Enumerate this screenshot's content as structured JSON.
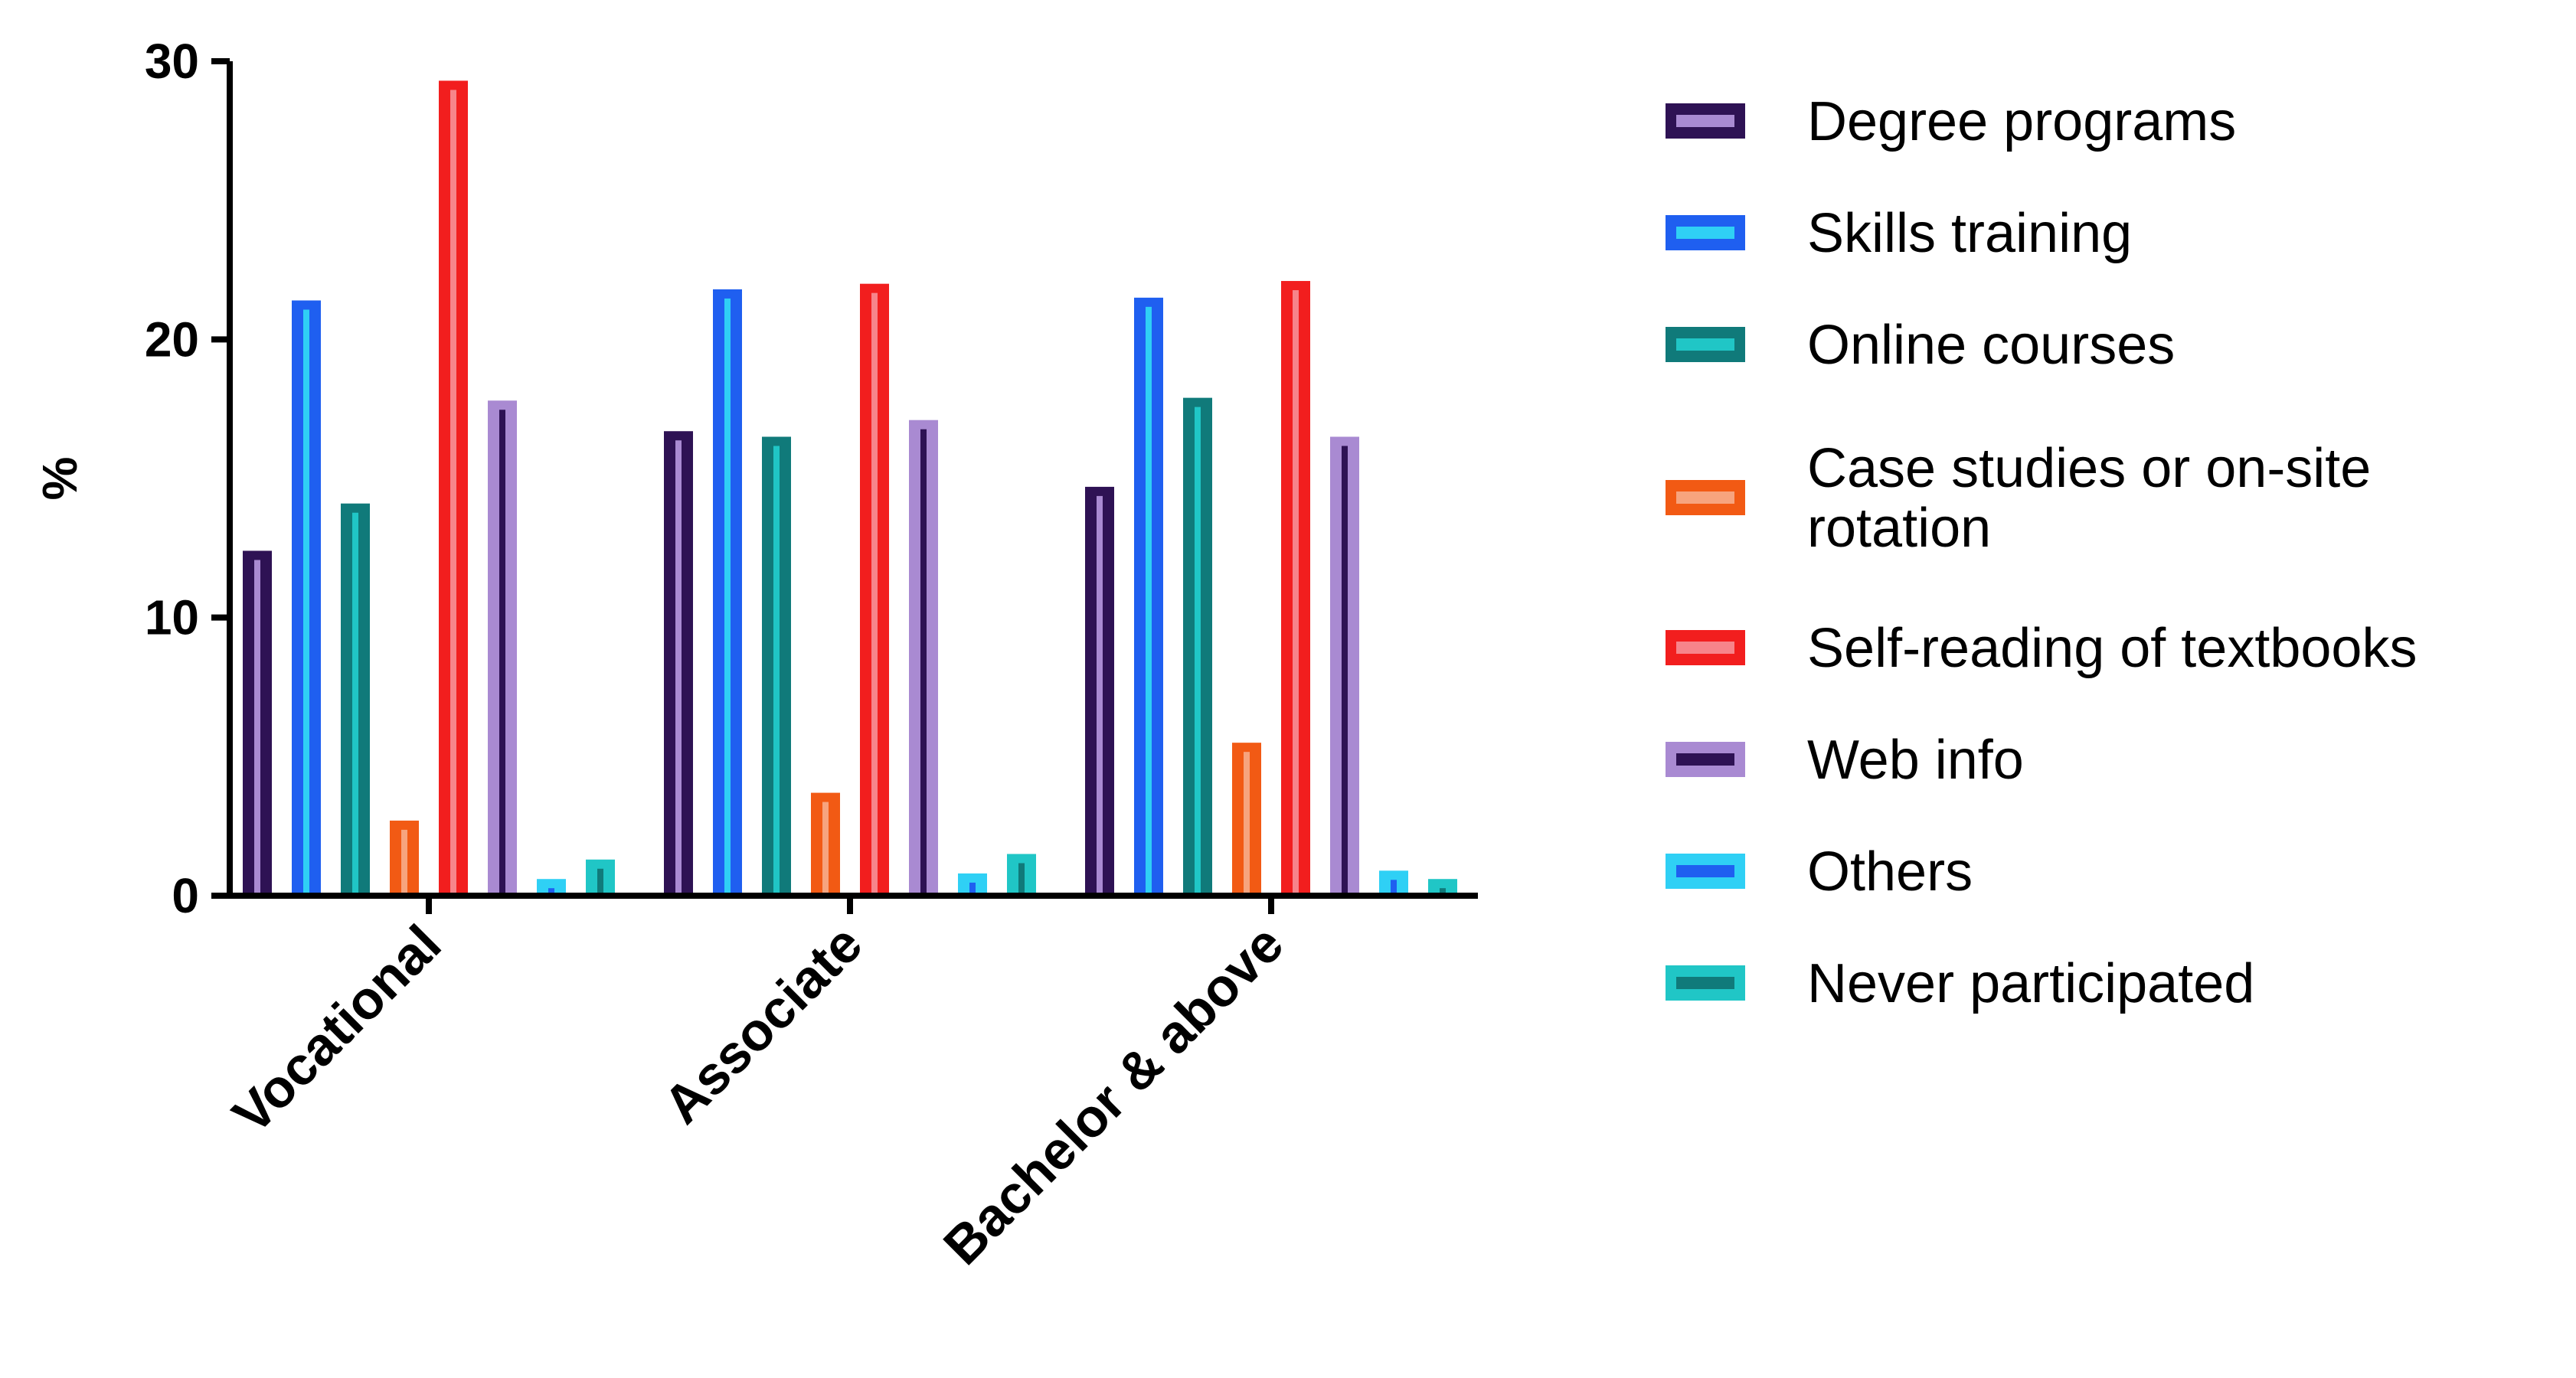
{
  "chart_data": {
    "type": "bar",
    "title": "",
    "xlabel": "",
    "ylabel": "%",
    "ylim": [
      0,
      30
    ],
    "yticks": [
      0,
      10,
      20,
      30
    ],
    "grid": false,
    "legend_position": "right",
    "categories": [
      "Vocational",
      "Associate",
      "Bachelor & above"
    ],
    "series": [
      {
        "name": "Degree programs",
        "values": [
          12.4,
          16.7,
          14.7
        ],
        "fill": "#2e1254",
        "inner": "#a98ad2"
      },
      {
        "name": "Skills training",
        "values": [
          21.4,
          21.8,
          21.5
        ],
        "fill": "#1f5ff0",
        "inner": "#2fd0f5"
      },
      {
        "name": "Online courses",
        "values": [
          14.1,
          16.5,
          17.9
        ],
        "fill": "#107a7a",
        "inner": "#20c6c6"
      },
      {
        "name": "Case studies or on-site rotation",
        "values": [
          2.7,
          3.7,
          5.5
        ],
        "fill": "#f25a14",
        "inner": "#f7a47e"
      },
      {
        "name": "Self-reading of textbooks",
        "values": [
          29.3,
          22.0,
          22.1
        ],
        "fill": "#f21e1e",
        "inner": "#f7848a"
      },
      {
        "name": "Web info",
        "values": [
          17.8,
          17.1,
          16.5
        ],
        "fill": "#a98ad2",
        "inner": "#2e1254"
      },
      {
        "name": "Others",
        "values": [
          0.6,
          0.8,
          0.9
        ],
        "fill": "#2fd0f5",
        "inner": "#1f5ff0"
      },
      {
        "name": "Never participated",
        "values": [
          1.3,
          1.5,
          0.6
        ],
        "fill": "#20c6c6",
        "inner": "#107a7a"
      }
    ]
  }
}
